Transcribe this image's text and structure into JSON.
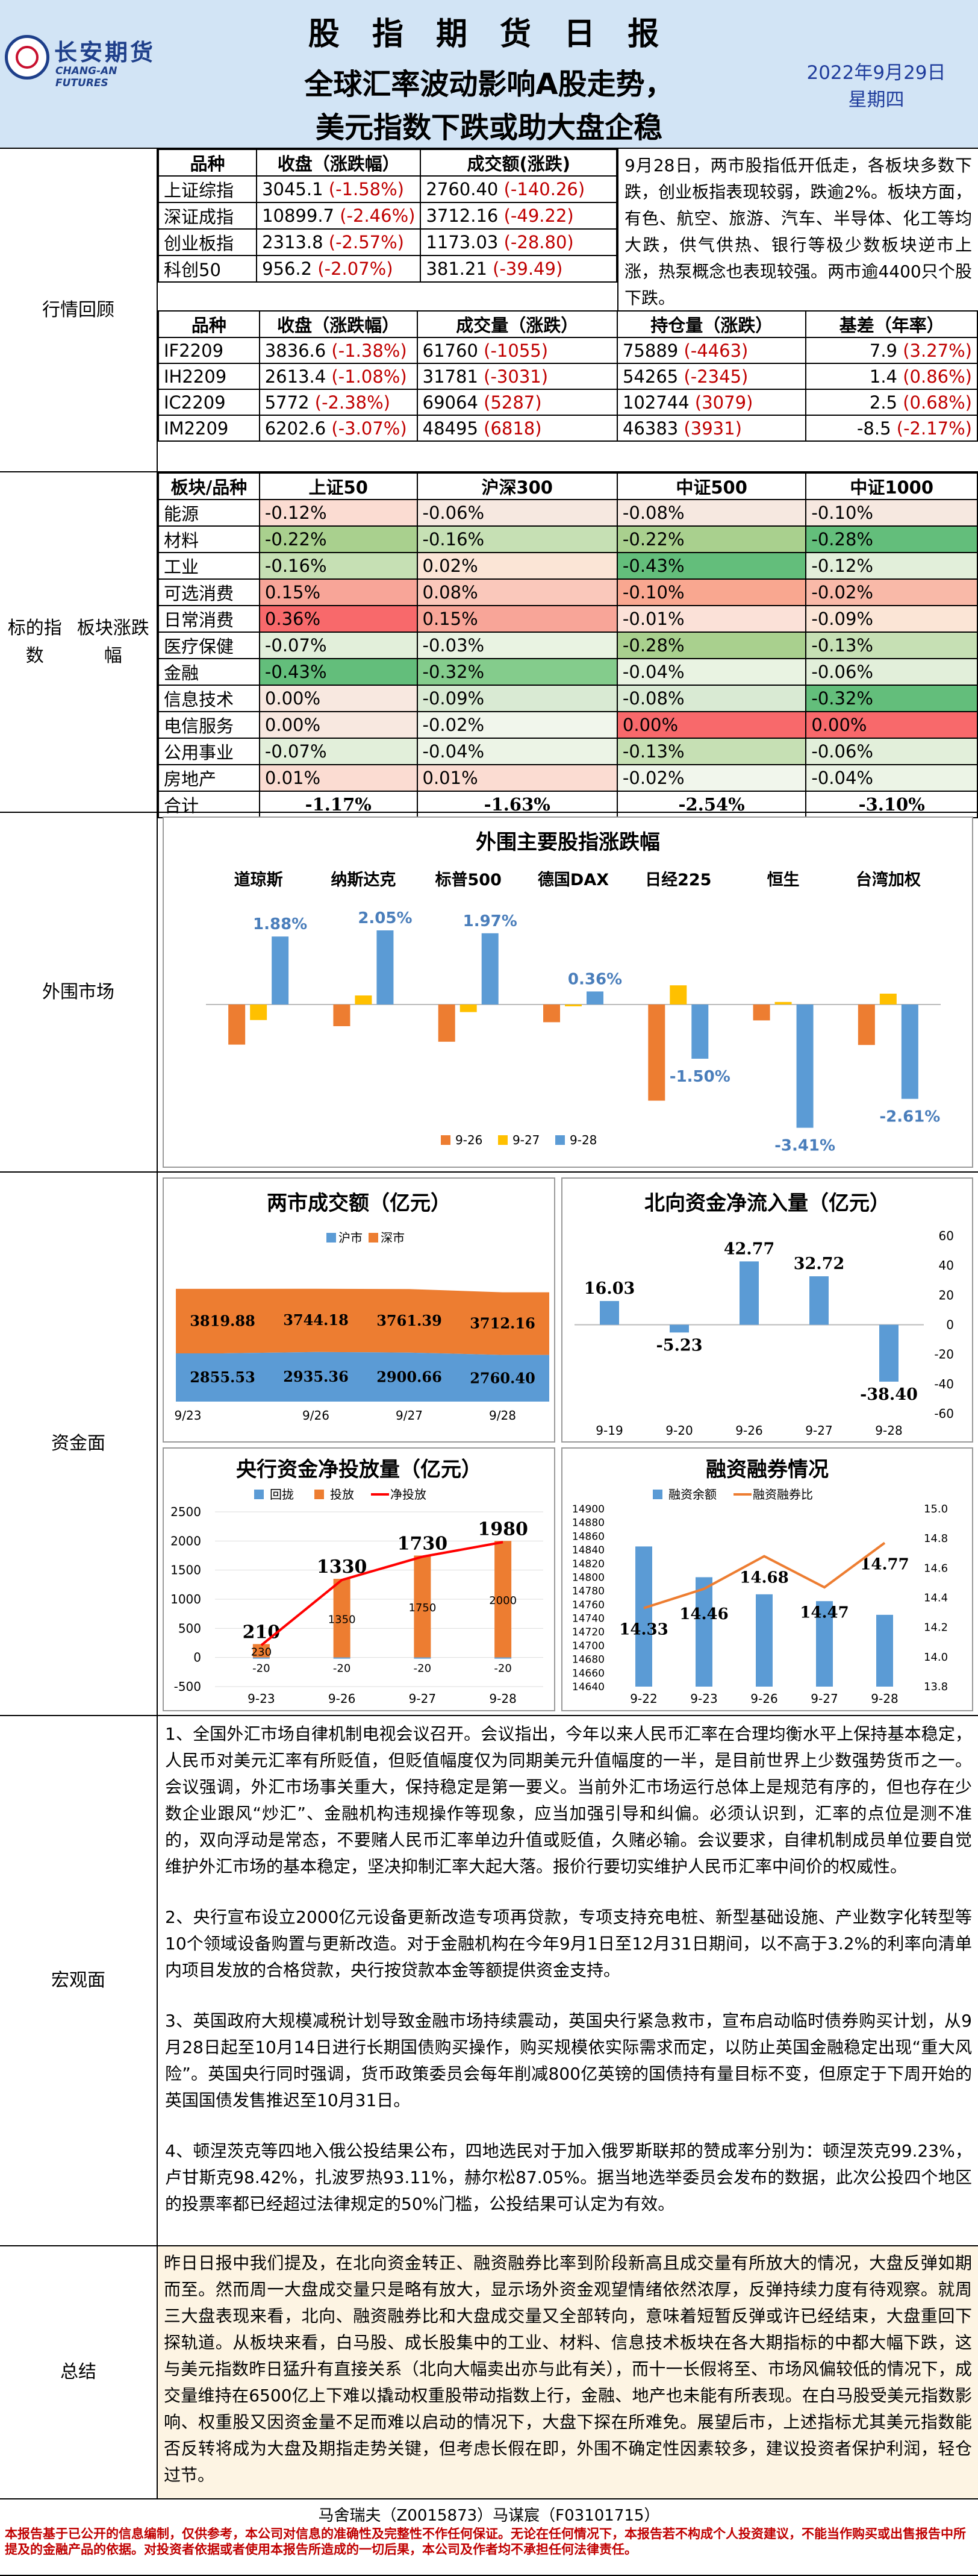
{
  "header": {
    "logo_cn": "长安期货",
    "logo_en": "CHANG-AN FUTURES",
    "title": "股 指 期 货 日 报",
    "headline1": "全球汇率波动影响A股走势，",
    "headline2": "美元指数下跌或助大盘企稳",
    "date": "2022年9月29日",
    "weekday": "星期四"
  },
  "market_review": {
    "label": "行情回顾",
    "index_headers": [
      "品种",
      "收盘（涨跌幅）",
      "成交额(涨跌)"
    ],
    "index_rows": [
      {
        "name": "上证综指",
        "close": "3045.1",
        "chg": "(-1.58%)",
        "amt": "2760.40",
        "amt_chg": "(-140.26)"
      },
      {
        "name": "深证成指",
        "close": "10899.7",
        "chg": "(-2.46%)",
        "amt": "3712.16",
        "amt_chg": "(-49.22)"
      },
      {
        "name": "创业板指",
        "close": "2313.8",
        "chg": "(-2.57%)",
        "amt": "1173.03",
        "amt_chg": "(-28.80)"
      },
      {
        "name": "科创50",
        "close": "956.2",
        "chg": "(-2.07%)",
        "amt": "381.21",
        "amt_chg": "(-39.49)"
      }
    ],
    "commentary": "9月28日，两市股指低开低走，各板块多数下跌，创业板指表现较弱，跌逾2%。板块方面，有色、航空、旅游、汽车、半导体、化工等均大跌，供气供热、银行等极少数板块逆市上涨，热泵概念也表现较强。两市逾4400只个股下跌。",
    "futures_headers": [
      "品种",
      "收盘（涨跌幅）",
      "成交量（涨跌）",
      "持仓量（涨跌）",
      "基差（年率）"
    ],
    "futures_rows": [
      {
        "name": "IF2209",
        "close": "3836.6",
        "chg": "(-1.38%)",
        "vol": "61760",
        "vol_chg": "(-1055)",
        "oi": "75889",
        "oi_chg": "(-4463)",
        "basis": "7.9",
        "basis_rate": "(3.27%)"
      },
      {
        "name": "IH2209",
        "close": "2613.4",
        "chg": "(-1.08%)",
        "vol": "31781",
        "vol_chg": "(-3031)",
        "oi": "54265",
        "oi_chg": "(-2345)",
        "basis": "1.4",
        "basis_rate": "(0.86%)"
      },
      {
        "name": "IC2209",
        "close": "5772",
        "chg": "(-2.38%)",
        "vol": "69064",
        "vol_chg": "(5287)",
        "oi": "102744",
        "oi_chg": "(3079)",
        "basis": "2.5",
        "basis_rate": "(0.68%)"
      },
      {
        "name": "IM2209",
        "close": "6202.6",
        "chg": "(-3.07%)",
        "vol": "48495",
        "vol_chg": "(6818)",
        "oi": "46383",
        "oi_chg": "(3931)",
        "basis": "-8.5",
        "basis_rate": "(-2.17%)"
      }
    ]
  },
  "sectors": {
    "label_line1": "标的指数",
    "label_line2": "板块涨跌幅",
    "headers": [
      "板块/品种",
      "上证50",
      "沪深300",
      "中证500",
      "中证1000"
    ],
    "rows": [
      {
        "name": "能源",
        "v": [
          "-0.12%",
          "-0.06%",
          "-0.08%",
          "-0.10%"
        ],
        "c": [
          "#fbdcd2",
          "#f6e8e0",
          "#f6e8e0",
          "#f6e8e0"
        ]
      },
      {
        "name": "材料",
        "v": [
          "-0.22%",
          "-0.16%",
          "-0.22%",
          "-0.28%"
        ],
        "c": [
          "#a9d08e",
          "#c6e0b4",
          "#a9d08e",
          "#63be7b"
        ]
      },
      {
        "name": "工业",
        "v": [
          "-0.16%",
          "0.02%",
          "-0.43%",
          "-0.12%"
        ],
        "c": [
          "#c6e0b4",
          "#fbe5d6",
          "#63be7b",
          "#e2efda"
        ]
      },
      {
        "name": "可选消费",
        "v": [
          "0.15%",
          "0.08%",
          "-0.10%",
          "-0.02%"
        ],
        "c": [
          "#f8a598",
          "#fac8bb",
          "#f9a790",
          "#f9b9a8"
        ]
      },
      {
        "name": "日常消费",
        "v": [
          "0.36%",
          "0.15%",
          "-0.01%",
          "-0.09%"
        ],
        "c": [
          "#f8696b",
          "#f8a598",
          "#fbe1d8",
          "#fbe5d6"
        ]
      },
      {
        "name": "医疗保健",
        "v": [
          "-0.07%",
          "-0.03%",
          "-0.28%",
          "-0.13%"
        ],
        "c": [
          "#e2efda",
          "#e9f3e2",
          "#a9d08e",
          "#c6e0b4"
        ]
      },
      {
        "name": "金融",
        "v": [
          "-0.43%",
          "-0.32%",
          "-0.04%",
          "-0.06%"
        ],
        "c": [
          "#63be7b",
          "#84cc8c",
          "#e9f3e2",
          "#e2efda"
        ]
      },
      {
        "name": "信息技术",
        "v": [
          "0.00%",
          "-0.09%",
          "-0.08%",
          "-0.32%"
        ],
        "c": [
          "#f8e8e0",
          "#d9ead3",
          "#d9ead3",
          "#63be7b"
        ]
      },
      {
        "name": "电信服务",
        "v": [
          "0.00%",
          "-0.02%",
          "0.00%",
          "0.00%"
        ],
        "c": [
          "#f8e8e0",
          "#f1f6ec",
          "#f8696b",
          "#f8696b"
        ]
      },
      {
        "name": "公用事业",
        "v": [
          "-0.07%",
          "-0.04%",
          "-0.13%",
          "-0.06%"
        ],
        "c": [
          "#e2efda",
          "#ecf4e6",
          "#c6e0b4",
          "#e2efda"
        ]
      },
      {
        "name": "房地产",
        "v": [
          "0.01%",
          "0.01%",
          "-0.02%",
          "-0.04%"
        ],
        "c": [
          "#fbdcd2",
          "#fbdcd2",
          "#f1f6ec",
          "#ecf4e6"
        ]
      }
    ],
    "total": {
      "name": "合计",
      "v": [
        "-1.17%",
        "-1.63%",
        "-2.54%",
        "-3.10%"
      ]
    }
  },
  "overseas": {
    "label": "外围市场",
    "chart_data": {
      "type": "bar",
      "title": "外围主要股指涨跌幅",
      "categories": [
        "道琼斯",
        "纳斯达克",
        "标普500",
        "德国DAX",
        "日经225",
        "恒生",
        "台湾加权"
      ],
      "series": [
        {
          "name": "9-26",
          "color": "#ed7d31",
          "values": [
            -1.11,
            -0.6,
            -1.03,
            -0.49,
            -2.66,
            -0.44,
            -1.12
          ]
        },
        {
          "name": "9-27",
          "color": "#ffc000",
          "values": [
            -0.43,
            0.25,
            -0.21,
            -0.05,
            0.53,
            0.07,
            0.3
          ]
        },
        {
          "name": "9-28",
          "color": "#5b9bd5",
          "values": [
            1.88,
            2.05,
            1.97,
            0.36,
            -1.5,
            -3.41,
            -2.61
          ]
        }
      ],
      "data_labels": [
        "1.88%",
        "2.05%",
        "1.97%",
        "0.36%",
        "-1.50%",
        "-3.41%",
        "-2.61%"
      ],
      "ylim": [
        -4,
        2.5
      ]
    }
  },
  "funds": {
    "label": "资金面",
    "turnover": {
      "chart_data": {
        "type": "bar",
        "title": "两市成交额（亿元）",
        "categories": [
          "9/23",
          "9/26",
          "9/27",
          "9/28"
        ],
        "series": [
          {
            "name": "沪市",
            "color": "#5b9bd5",
            "values": [
              2855.53,
              2935.36,
              2900.66,
              2760.4
            ]
          },
          {
            "name": "深市",
            "color": "#ed7d31",
            "values": [
              3819.88,
              3744.18,
              3761.39,
              3712.16
            ]
          }
        ],
        "ylim": [
          0,
          8000
        ]
      }
    },
    "northbound": {
      "chart_data": {
        "type": "bar",
        "title": "北向资金净流入量（亿元）",
        "categories": [
          "9-19",
          "9-20",
          "9-26",
          "9-27",
          "9-28"
        ],
        "values": [
          16.03,
          -5.23,
          42.77,
          32.72,
          -38.4
        ],
        "labels": [
          "16.03",
          "-5.23",
          "42.77",
          "32.72",
          "-38.40"
        ],
        "ylim": [
          -60,
          60
        ],
        "yticks": [
          "60",
          "40",
          "20",
          "0",
          "-20",
          "-40",
          "-60"
        ],
        "color": "#5b9bd5"
      }
    },
    "pboc": {
      "chart_data": {
        "type": "bar",
        "title": "央行资金净投放量（亿元）",
        "categories": [
          "9-23",
          "9-26",
          "9-27",
          "9-28"
        ],
        "series": [
          {
            "name": "回拢",
            "color": "#5b9bd5",
            "values": [
              -20,
              -20,
              -20,
              -20
            ]
          },
          {
            "name": "投放",
            "color": "#ed7d31",
            "values": [
              230,
              1350,
              1750,
              2000
            ]
          },
          {
            "name": "净投放",
            "color": "#ff0000",
            "values": [
              210,
              1330,
              1730,
              1980
            ]
          }
        ],
        "ylim": [
          -500,
          2500
        ],
        "yticks": [
          "2500",
          "2000",
          "1500",
          "1000",
          "500",
          "0",
          "-500"
        ]
      }
    },
    "margin": {
      "chart_data": {
        "type": "bar",
        "title": "融资融券情况",
        "categories": [
          "9-22",
          "9-23",
          "9-26",
          "9-27",
          "9-28"
        ],
        "series": [
          {
            "name": "融资余额",
            "color": "#5b9bd5",
            "values": [
              14845,
              14800,
              14775,
              14765,
              14745
            ]
          },
          {
            "name": "融资融券比",
            "color": "#ed7d31",
            "values": [
              14.33,
              14.46,
              14.68,
              14.47,
              14.77
            ]
          }
        ],
        "ratio_labels": [
          "14.33",
          "14.46",
          "14.68",
          "14.47",
          "14.77"
        ],
        "ylim_left": [
          14640,
          14900
        ],
        "yticks_left": [
          "14900",
          "14880",
          "14860",
          "14840",
          "14820",
          "14800",
          "14780",
          "14760",
          "14740",
          "14720",
          "14700",
          "14680",
          "14660",
          "14640"
        ],
        "ylim_right": [
          13.8,
          15.0
        ],
        "yticks_right": [
          "15.0",
          "14.8",
          "14.6",
          "14.4",
          "14.2",
          "14.0",
          "13.8"
        ]
      }
    }
  },
  "macro": {
    "label": "宏观面",
    "paragraphs": [
      "1、全国外汇市场自律机制电视会议召开。会议指出，今年以来人民币汇率在合理均衡水平上保持基本稳定，人民币对美元汇率有所贬值，但贬值幅度仅为同期美元升值幅度的一半，是目前世界上少数强势货币之一。会议强调，外汇市场事关重大，保持稳定是第一要义。当前外汇市场运行总体上是规范有序的，但也存在少数企业跟风“炒汇”、金融机构违规操作等现象，应当加强引导和纠偏。必须认识到，汇率的点位是测不准的，双向浮动是常态，不要赌人民币汇率单边升值或贬值，久赌必输。会议要求，自律机制成员单位要自觉维护外汇市场的基本稳定，坚决抑制汇率大起大落。报价行要切实维护人民币汇率中间价的权威性。",
      "2、央行宣布设立2000亿元设备更新改造专项再贷款，专项支持充电桩、新型基础设施、产业数字化转型等10个领域设备购置与更新改造。对于金融机构在今年9月1日至12月31日期间，以不高于3.2%的利率向清单内项目发放的合格贷款，央行按贷款本金等额提供资金支持。",
      "3、英国政府大规模减税计划导致金融市场持续震动，英国央行紧急救市，宣布启动临时债券购买计划，从9月28日起至10月14日进行长期国债购买操作，购买规模依实际需求而定，以防止英国金融稳定出现“重大风险”。英国央行同时强调，货币政策委员会每年削减800亿英镑的国债持有量目标不变，但原定于下周开始的英国国债发售推迟至10月31日。",
      "4、顿涅茨克等四地入俄公投结果公布，四地选民对于加入俄罗斯联邦的赞成率分别为：顿涅茨克99.23%，卢甘斯克98.42%，扎波罗热93.11%，赫尔松87.05%。据当地选举委员会发布的数据，此次公投四个地区的投票率都已经超过法律规定的50%门槛，公投结果可认定为有效。"
    ]
  },
  "summary": {
    "label": "总结",
    "text": "昨日日报中我们提及，在北向资金转正、融资融券比率到阶段新高且成交量有所放大的情况，大盘反弹如期而至。然而周一大盘成交量只是略有放大，显示场外资金观望情绪依然浓厚，反弹持续力度有待观察。就周三大盘表现来看，北向、融资融券比和大盘成交量又全部转向，意味着短暂反弹或许已经结束，大盘重回下探轨道。从板块来看，白马股、成长股集中的工业、材料、信息技术板块在各大期指标的中都大幅下跌，这与美元指数昨日猛升有直接关系（北向大幅卖出亦与此有关），而十一长假将至、市场风偏较低的情况下，成交量维持在6500亿上下难以撬动权重股带动指数上行，金融、地产也未能有所表现。在白马股受美元指数影响、权重股又因资金量不足而难以启动的情况下，大盘下探在所难免。展望后市，上述指标尤其美元指数能否反转将成为大盘及期指走势关键，但考虑长假在即，外围不确定性因素较多，建议投资者保护利润，轻仓过节。"
  },
  "footer": {
    "authors": "马舍瑞夫（Z0015873）马谋宸（F03101715）",
    "disclaimer": "本报告基于已公开的信息编制，仅供参考，本公司对信息的准确性及完整性不作任何保证。无论在任何情况下，本报告若不构成个人投资建议，不能当作购买或出售报告中所提及的金融产品的依据。对投资者依据或者使用本报告所造成的一切后果，本公司及作者均不承担任何法律责任。"
  }
}
